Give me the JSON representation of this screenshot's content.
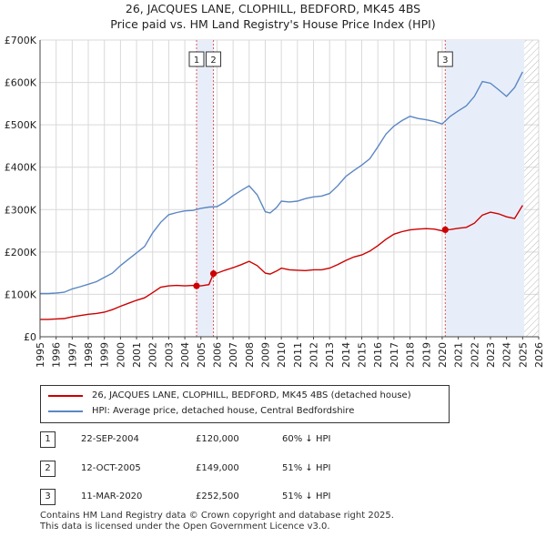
{
  "header": {
    "title_line1": "26, JACQUES LANE, CLOPHILL, BEDFORD, MK45 4BS",
    "title_line2": "Price paid vs. HM Land Registry's House Price Index (HPI)"
  },
  "chart_data": {
    "type": "line",
    "title": "26, JACQUES LANE, CLOPHILL, BEDFORD, MK45 4BS",
    "subtitle": "Price paid vs. HM Land Registry's House Price Index (HPI)",
    "xlabel": "",
    "ylabel": "",
    "xlim": [
      1995,
      2026
    ],
    "ylim": [
      0,
      700000
    ],
    "y_ticks": [
      0,
      100000,
      200000,
      300000,
      400000,
      500000,
      600000,
      700000
    ],
    "y_tick_labels": [
      "£0",
      "£100K",
      "£200K",
      "£300K",
      "£400K",
      "£500K",
      "£600K",
      "£700K"
    ],
    "x_ticks": [
      "1995",
      "1996",
      "1997",
      "1998",
      "1999",
      "2000",
      "2001",
      "2002",
      "2003",
      "2004",
      "2005",
      "2006",
      "2007",
      "2008",
      "2009",
      "2010",
      "2011",
      "2012",
      "2013",
      "2014",
      "2015",
      "2016",
      "2017",
      "2018",
      "2019",
      "2020",
      "2021",
      "2022",
      "2023",
      "2024",
      "2025",
      "2026"
    ],
    "grid": true,
    "colors": {
      "property": "#cc0000",
      "hpi": "#5b87c3",
      "shade": "#e8eef9",
      "hatch": "#bbbbbb",
      "vline": "#dd5555"
    },
    "shaded_regions": [
      [
        2004.73,
        2005.78
      ],
      [
        2020.19,
        2025.1
      ]
    ],
    "hatched_region": [
      2025.1,
      2026
    ],
    "series": [
      {
        "name": "26, JACQUES LANE, CLOPHILL, BEDFORD, MK45 4BS (detached house)",
        "color": "#cc0000",
        "x": [
          1995,
          1995.5,
          1996,
          1996.5,
          1997,
          1997.5,
          1998,
          1998.5,
          1999,
          1999.5,
          2000,
          2000.5,
          2001,
          2001.5,
          2002,
          2002.5,
          2003,
          2003.5,
          2004,
          2004.5,
          2004.73,
          2005,
          2005.5,
          2005.78,
          2006,
          2006.5,
          2007,
          2007.5,
          2008,
          2008.5,
          2009,
          2009.3,
          2009.7,
          2010,
          2010.5,
          2011,
          2011.5,
          2012,
          2012.5,
          2013,
          2013.5,
          2014,
          2014.5,
          2015,
          2015.5,
          2016,
          2016.5,
          2017,
          2017.5,
          2018,
          2018.5,
          2019,
          2019.5,
          2020,
          2020.19,
          2020.5,
          2021,
          2021.5,
          2022,
          2022.5,
          2023,
          2023.5,
          2024,
          2024.5,
          2025
        ],
        "values": [
          41000,
          41000,
          42000,
          43000,
          47000,
          50000,
          53000,
          55000,
          58000,
          64000,
          72000,
          79000,
          86000,
          92000,
          104000,
          117000,
          120000,
          121000,
          120000,
          121000,
          120000,
          120000,
          123000,
          149000,
          150000,
          157000,
          163000,
          170000,
          178000,
          168000,
          150000,
          148000,
          155000,
          162000,
          158000,
          157000,
          156000,
          158000,
          158000,
          162000,
          170000,
          180000,
          188000,
          193000,
          202000,
          215000,
          230000,
          242000,
          248000,
          252000,
          254000,
          255000,
          254000,
          250000,
          252500,
          253000,
          256000,
          258000,
          268000,
          287000,
          294000,
          290000,
          283000,
          279000,
          310000
        ]
      },
      {
        "name": "HPI: Average price, detached house, Central Bedfordshire",
        "color": "#5b87c3",
        "x": [
          1995,
          1995.5,
          1996,
          1996.5,
          1997,
          1997.5,
          1998,
          1998.5,
          1999,
          1999.5,
          2000,
          2000.5,
          2001,
          2001.5,
          2002,
          2002.5,
          2003,
          2003.5,
          2004,
          2004.5,
          2005,
          2005.5,
          2006,
          2006.5,
          2007,
          2007.5,
          2008,
          2008.5,
          2009,
          2009.3,
          2009.7,
          2010,
          2010.5,
          2011,
          2011.5,
          2012,
          2012.5,
          2013,
          2013.5,
          2014,
          2014.5,
          2015,
          2015.5,
          2016,
          2016.5,
          2017,
          2017.5,
          2018,
          2018.5,
          2019,
          2019.5,
          2020,
          2020.5,
          2021,
          2021.5,
          2022,
          2022.5,
          2023,
          2023.5,
          2024,
          2024.5,
          2025
        ],
        "values": [
          102000,
          102000,
          103000,
          105000,
          113000,
          118000,
          124000,
          130000,
          140000,
          150000,
          168000,
          183000,
          198000,
          213000,
          245000,
          270000,
          288000,
          293000,
          297000,
          298000,
          303000,
          306000,
          307000,
          318000,
          333000,
          345000,
          356000,
          335000,
          295000,
          292000,
          305000,
          320000,
          318000,
          320000,
          326000,
          330000,
          332000,
          338000,
          356000,
          378000,
          392000,
          405000,
          420000,
          448000,
          478000,
          497000,
          510000,
          520000,
          515000,
          512000,
          508000,
          502000,
          520000,
          533000,
          545000,
          567000,
          602000,
          598000,
          583000,
          567000,
          588000,
          625000
        ]
      }
    ],
    "sales": [
      {
        "marker": "1",
        "x": 2004.73,
        "value": 120000
      },
      {
        "marker": "2",
        "x": 2005.78,
        "value": 149000
      },
      {
        "marker": "3",
        "x": 2020.19,
        "value": 252500
      }
    ]
  },
  "legend": {
    "property_label": "26, JACQUES LANE, CLOPHILL, BEDFORD, MK45 4BS (detached house)",
    "hpi_label": "HPI: Average price, detached house, Central Bedfordshire"
  },
  "sales_table": [
    {
      "num": "1",
      "date": "22-SEP-2004",
      "price": "£120,000",
      "hpi": "60% ↓ HPI"
    },
    {
      "num": "2",
      "date": "12-OCT-2005",
      "price": "£149,000",
      "hpi": "51% ↓ HPI"
    },
    {
      "num": "3",
      "date": "11-MAR-2020",
      "price": "£252,500",
      "hpi": "51% ↓ HPI"
    }
  ],
  "footer": {
    "line1": "Contains HM Land Registry data © Crown copyright and database right 2025.",
    "line2": "This data is licensed under the Open Government Licence v3.0."
  }
}
